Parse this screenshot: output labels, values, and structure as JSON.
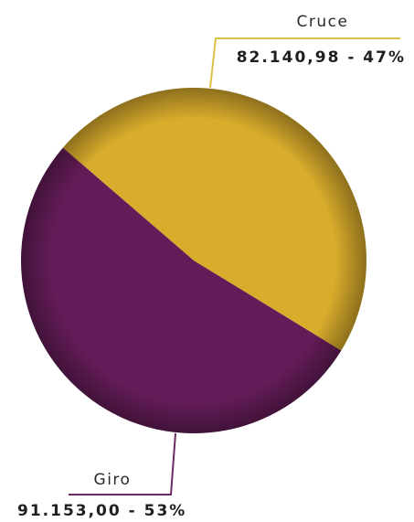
{
  "chart_data": {
    "type": "pie",
    "title": "",
    "slices": [
      {
        "name": "Cruce",
        "value": 82140.98,
        "percent": 47,
        "value_label": "82.140,98 - 47%",
        "color": "#d9ac2c",
        "leader_color": "#dcc046"
      },
      {
        "name": "Giro",
        "value": 91153.0,
        "percent": 53,
        "value_label": "91.153,00 - 53%",
        "color": "#641c58",
        "leader_color": "#6b2a63"
      }
    ],
    "legend": "none",
    "labels": "outside-with-leader-lines"
  }
}
